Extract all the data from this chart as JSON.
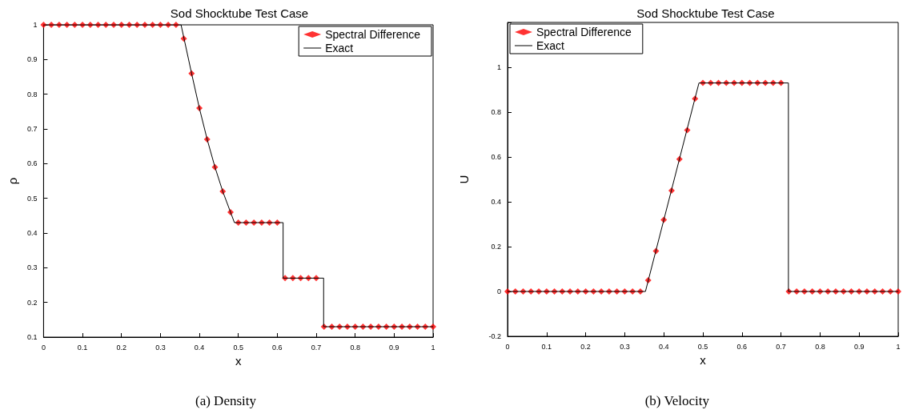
{
  "chart_data": [
    {
      "type": "line",
      "title": "Sod Shocktube Test Case",
      "xlabel": "x",
      "ylabel": "ρ",
      "annotations": [
        "(a) Density"
      ],
      "xlim": [
        0,
        1
      ],
      "ylim": [
        0.1,
        1
      ],
      "xticks": [
        0,
        0.1,
        0.2,
        0.3,
        0.4,
        0.5,
        0.6,
        0.7,
        0.8,
        0.9,
        1
      ],
      "yticks": [
        0.1,
        0.2,
        0.3,
        0.4,
        0.5,
        0.6,
        0.7,
        0.8,
        0.9,
        1
      ],
      "legend": "top right",
      "series": [
        {
          "name": "Spectral Difference",
          "type": "scatter",
          "marker": "diamond",
          "color": "#ff0000",
          "x": [
            0,
            0.02,
            0.04,
            0.06,
            0.08,
            0.1,
            0.12,
            0.14,
            0.16,
            0.18,
            0.2,
            0.22,
            0.24,
            0.26,
            0.28,
            0.3,
            0.32,
            0.34,
            0.36,
            0.38,
            0.4,
            0.42,
            0.44,
            0.46,
            0.48,
            0.5,
            0.52,
            0.54,
            0.56,
            0.58,
            0.6,
            0.62,
            0.64,
            0.66,
            0.68,
            0.7,
            0.72,
            0.74,
            0.76,
            0.78,
            0.8,
            0.82,
            0.84,
            0.86,
            0.88,
            0.9,
            0.92,
            0.94,
            0.96,
            0.98,
            1
          ],
          "values": [
            1,
            1,
            1,
            1,
            1,
            1,
            1,
            1,
            1,
            1,
            1,
            1,
            1,
            1,
            1,
            1,
            1,
            1,
            0.96,
            0.86,
            0.76,
            0.67,
            0.59,
            0.52,
            0.46,
            0.43,
            0.43,
            0.43,
            0.43,
            0.43,
            0.43,
            0.27,
            0.27,
            0.27,
            0.27,
            0.27,
            0.13,
            0.13,
            0.13,
            0.13,
            0.13,
            0.13,
            0.13,
            0.13,
            0.13,
            0.13,
            0.13,
            0.13,
            0.13,
            0.13,
            0.13
          ]
        },
        {
          "name": "Exact",
          "type": "line",
          "marker": "none",
          "color": "#000000",
          "x": [
            0,
            0.353,
            0.38,
            0.4,
            0.42,
            0.44,
            0.46,
            0.49,
            0.615,
            0.615,
            0.719,
            0.719,
            1
          ],
          "values": [
            1,
            1,
            0.86,
            0.76,
            0.67,
            0.59,
            0.52,
            0.43,
            0.43,
            0.27,
            0.27,
            0.13,
            0.13
          ]
        }
      ]
    },
    {
      "type": "line",
      "title": "Sod Shocktube Test Case",
      "xlabel": "x",
      "ylabel": "U",
      "annotations": [
        "(b) Velocity"
      ],
      "xlim": [
        0,
        1
      ],
      "ylim": [
        -0.2,
        1.2
      ],
      "xticks": [
        0,
        0.1,
        0.2,
        0.3,
        0.4,
        0.5,
        0.6,
        0.7,
        0.8,
        0.9,
        1
      ],
      "yticks": [
        -0.2,
        0,
        0.2,
        0.4,
        0.6,
        0.8,
        1,
        {
          "value": 1.2,
          "label": null
        }
      ],
      "legend": "top left",
      "series": [
        {
          "name": "Spectral Difference",
          "type": "scatter",
          "marker": "diamond",
          "color": "#ff0000",
          "x": [
            0,
            0.02,
            0.04,
            0.06,
            0.08,
            0.1,
            0.12,
            0.14,
            0.16,
            0.18,
            0.2,
            0.22,
            0.24,
            0.26,
            0.28,
            0.3,
            0.32,
            0.34,
            0.36,
            0.38,
            0.4,
            0.42,
            0.44,
            0.46,
            0.48,
            0.5,
            0.52,
            0.54,
            0.56,
            0.58,
            0.6,
            0.62,
            0.64,
            0.66,
            0.68,
            0.7,
            0.72,
            0.74,
            0.76,
            0.78,
            0.8,
            0.82,
            0.84,
            0.86,
            0.88,
            0.9,
            0.92,
            0.94,
            0.96,
            0.98,
            1
          ],
          "values": [
            0,
            0,
            0,
            0,
            0,
            0,
            0,
            0,
            0,
            0,
            0,
            0,
            0,
            0,
            0,
            0,
            0,
            0,
            0.05,
            0.18,
            0.32,
            0.45,
            0.59,
            0.72,
            0.86,
            0.93,
            0.93,
            0.93,
            0.93,
            0.93,
            0.93,
            0.93,
            0.93,
            0.93,
            0.93,
            0.93,
            0,
            0,
            0,
            0,
            0,
            0,
            0,
            0,
            0,
            0,
            0,
            0,
            0,
            0,
            0
          ]
        },
        {
          "name": "Exact",
          "type": "line",
          "marker": "none",
          "color": "#000000",
          "x": [
            0,
            0.353,
            0.49,
            0.719,
            0.719,
            1
          ],
          "values": [
            0,
            0,
            0.93,
            0.93,
            0,
            0
          ]
        }
      ]
    }
  ]
}
